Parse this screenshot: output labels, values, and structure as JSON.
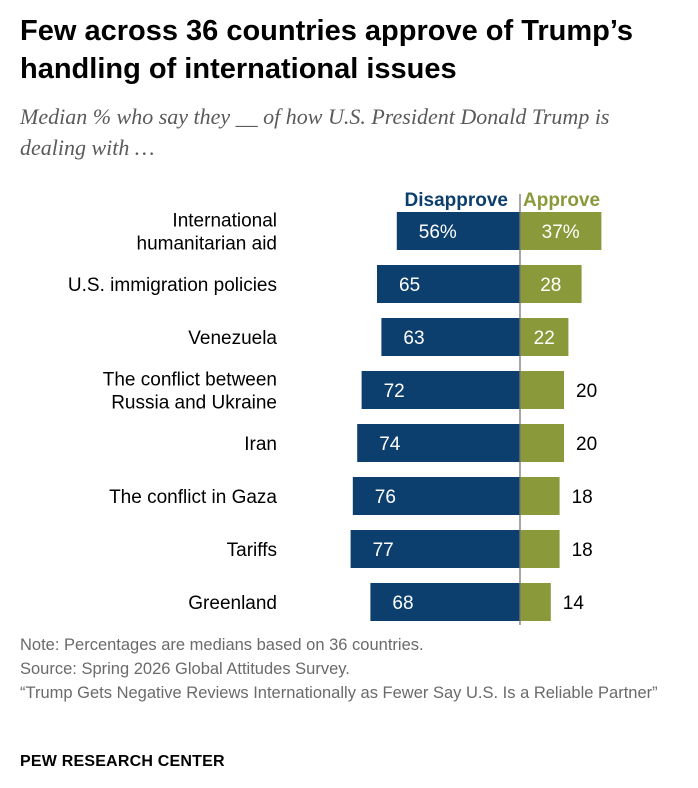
{
  "title": "Few across 36 countries approve of Trump’s handling of international issues",
  "subtitle": "Median % who say they __ of how U.S. President Donald Trump is dealing with …",
  "chart_data": {
    "type": "bar",
    "orientation": "diverging-horizontal",
    "categories": [
      "International humanitarian aid",
      "U.S. immigration policies",
      "Venezuela",
      "The conflict between Russia and Ukraine",
      "Iran",
      "The conflict in Gaza",
      "Tariffs",
      "Greenland"
    ],
    "category_lines": [
      [
        "International",
        "humanitarian aid"
      ],
      [
        "U.S. immigration policies"
      ],
      [
        "Venezuela"
      ],
      [
        "The conflict between",
        "Russia and Ukraine"
      ],
      [
        "Iran"
      ],
      [
        "The conflict in Gaza"
      ],
      [
        "Tariffs"
      ],
      [
        "Greenland"
      ]
    ],
    "series": [
      {
        "name": "Disapprove",
        "values": [
          56,
          65,
          63,
          72,
          74,
          76,
          77,
          68
        ],
        "labels": [
          "56%",
          "65",
          "63",
          "72",
          "74",
          "76",
          "77",
          "68"
        ],
        "color": "#0d3f6e"
      },
      {
        "name": "Approve",
        "values": [
          37,
          28,
          22,
          20,
          20,
          18,
          18,
          14
        ],
        "labels": [
          "37%",
          "28",
          "22",
          "20",
          "20",
          "18",
          "18",
          "14"
        ],
        "color": "#8a9a3b"
      }
    ],
    "unit": "%",
    "xlim": [
      0,
      100
    ]
  },
  "notes": {
    "note": "Note: Percentages are medians based on 36 countries.",
    "source": "Source: Spring 2026 Global Attitudes Survey.",
    "report": "“Trump Gets Negative Reviews Internationally as Fewer Say U.S. Is a Reliable Partner”"
  },
  "brand": "PEW RESEARCH CENTER"
}
